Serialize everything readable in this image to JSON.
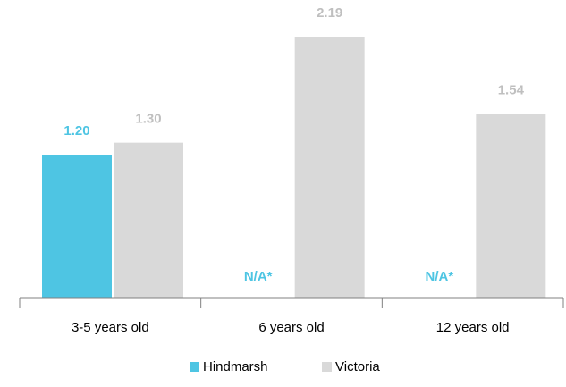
{
  "chart_data": {
    "type": "bar",
    "categories": [
      "3-5 years old",
      "6 years old",
      "12 years old"
    ],
    "series": [
      {
        "name": "Hindmarsh",
        "color": "#4ec5e3",
        "values": [
          1.2,
          null,
          null
        ],
        "value_labels": [
          "1.20",
          "N/A*",
          "N/A*"
        ]
      },
      {
        "name": "Victoria",
        "color": "#d9d9d9",
        "values": [
          1.3,
          2.19,
          1.54
        ],
        "value_labels": [
          "1.30",
          "2.19",
          "1.54"
        ]
      }
    ],
    "label_colors": [
      "#4ec5e3",
      "#bfbfbf"
    ],
    "legend": "bottom"
  }
}
